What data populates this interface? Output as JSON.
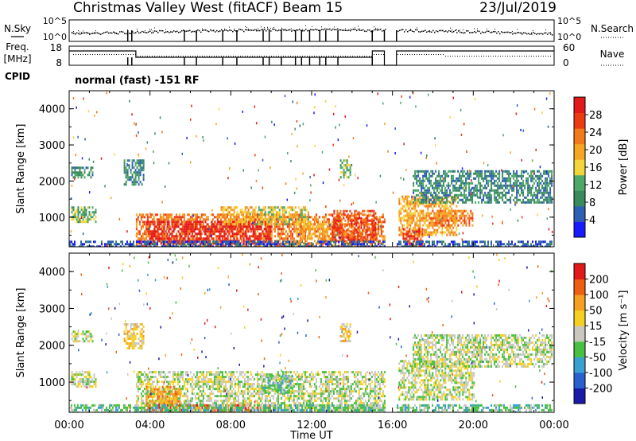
{
  "header": {
    "station": "Christmas Valley West (fitACF)",
    "beam": "Beam 15",
    "date": "23/Jul/2019"
  },
  "left_labels": {
    "nsky": "N.Sky",
    "freq": "Freq.",
    "freq_unit": "[MHz]",
    "cpid": "CPID"
  },
  "right_labels": {
    "nsearch": "N.Search",
    "nave": "Nave"
  },
  "small_axes": {
    "noise_ticks": [
      "10^5",
      "10^0"
    ],
    "freq_ticks": [
      "18",
      "8"
    ],
    "nave_ticks": [
      "60",
      "0"
    ]
  },
  "cpid_text": "normal (fast) -151 RF",
  "colors": {
    "power": [
      "#1a1aff",
      "#2e5fb3",
      "#3b8a5e",
      "#4ea86a",
      "#f4d63b",
      "#f5a623",
      "#f27a1a",
      "#ee3a12",
      "#e31a1c"
    ],
    "velocity": [
      "#1a1aaa",
      "#2a5fd0",
      "#3aa0d0",
      "#4ac040",
      "#c8c8c0",
      "#f5d020",
      "#f5a020",
      "#ee6010",
      "#e31a1c"
    ]
  },
  "chart_data": [
    {
      "type": "heatmap",
      "name": "power",
      "xlabel": "",
      "ylabel": "Slant Range [km]",
      "ylim": [
        180,
        4500
      ],
      "xlim": [
        0,
        24
      ],
      "yticks": [
        "4000",
        "3000",
        "2000",
        "1000"
      ],
      "colorbar_label": "Power [dB]",
      "colorbar_ticks": [
        "28",
        "24",
        "20",
        "16",
        "12",
        "8",
        "4"
      ],
      "regions": [
        {
          "t0": 0.1,
          "t1": 1.3,
          "r0": 900,
          "r1": 1300,
          "level": 3
        },
        {
          "t0": 0.1,
          "t1": 1.2,
          "r0": 2100,
          "r1": 2400,
          "level": 2
        },
        {
          "t0": 2.7,
          "t1": 3.7,
          "r0": 1900,
          "r1": 2600,
          "level": 2
        },
        {
          "t0": 3.3,
          "t1": 15.6,
          "r0": 200,
          "r1": 1100,
          "level": 6
        },
        {
          "t0": 3.8,
          "t1": 10.0,
          "r0": 300,
          "r1": 900,
          "level": 8
        },
        {
          "t0": 7.5,
          "t1": 9.2,
          "r0": 800,
          "r1": 1300,
          "level": 5
        },
        {
          "t0": 9.2,
          "t1": 11.8,
          "r0": 800,
          "r1": 1300,
          "level": 4
        },
        {
          "t0": 11.2,
          "t1": 12.8,
          "r0": 400,
          "r1": 900,
          "level": 5
        },
        {
          "t0": 13.0,
          "t1": 15.2,
          "r0": 300,
          "r1": 1200,
          "level": 7
        },
        {
          "t0": 13.4,
          "t1": 13.9,
          "r0": 2100,
          "r1": 2600,
          "level": 3
        },
        {
          "t0": 16.3,
          "t1": 19.2,
          "r0": 500,
          "r1": 1600,
          "level": 5
        },
        {
          "t0": 16.5,
          "t1": 17.5,
          "r0": 200,
          "r1": 700,
          "level": 7
        },
        {
          "t0": 17.8,
          "t1": 20.0,
          "r0": 800,
          "r1": 1200,
          "level": 6
        },
        {
          "t0": 17.0,
          "t1": 23.9,
          "r0": 1400,
          "r1": 2300,
          "level": 2
        },
        {
          "t0": 0.0,
          "t1": 23.9,
          "r0": 180,
          "r1": 350,
          "level": 1
        }
      ]
    },
    {
      "type": "heatmap",
      "name": "velocity",
      "xlabel": "Time UT",
      "ylabel": "Slant Range [km]",
      "ylim": [
        180,
        4500
      ],
      "xlim": [
        0,
        24
      ],
      "xticks": [
        "00:00",
        "04:00",
        "08:00",
        "12:00",
        "16:00",
        "20:00",
        "00:00"
      ],
      "yticks": [
        "4000",
        "3000",
        "2000",
        "1000"
      ],
      "colorbar_label": "Velocity [m s⁻¹]",
      "colorbar_ticks": [
        "200",
        "100",
        "50",
        "15",
        "-15",
        "-50",
        "-100",
        "-200"
      ],
      "regions": [
        {
          "t0": 0.1,
          "t1": 1.3,
          "r0": 900,
          "r1": 1300,
          "level": 4
        },
        {
          "t0": 0.1,
          "t1": 1.2,
          "r0": 2100,
          "r1": 2400,
          "level": 4
        },
        {
          "t0": 2.7,
          "t1": 3.7,
          "r0": 1900,
          "r1": 2600,
          "level": 5
        },
        {
          "t0": 3.3,
          "t1": 15.6,
          "r0": 200,
          "r1": 1300,
          "level": 4
        },
        {
          "t0": 3.8,
          "t1": 5.5,
          "r0": 400,
          "r1": 900,
          "level": 6
        },
        {
          "t0": 3.8,
          "t1": 10.0,
          "r0": 200,
          "r1": 400,
          "level": 7
        },
        {
          "t0": 9.5,
          "t1": 11.0,
          "r0": 700,
          "r1": 1200,
          "level": 3
        },
        {
          "t0": 13.4,
          "t1": 13.9,
          "r0": 2100,
          "r1": 2600,
          "level": 5
        },
        {
          "t0": 16.3,
          "t1": 20.0,
          "r0": 500,
          "r1": 1600,
          "level": 4
        },
        {
          "t0": 17.0,
          "t1": 23.9,
          "r0": 1400,
          "r1": 2300,
          "level": 4
        },
        {
          "t0": 0.0,
          "t1": 23.9,
          "r0": 180,
          "r1": 400,
          "level": 3
        }
      ]
    }
  ]
}
